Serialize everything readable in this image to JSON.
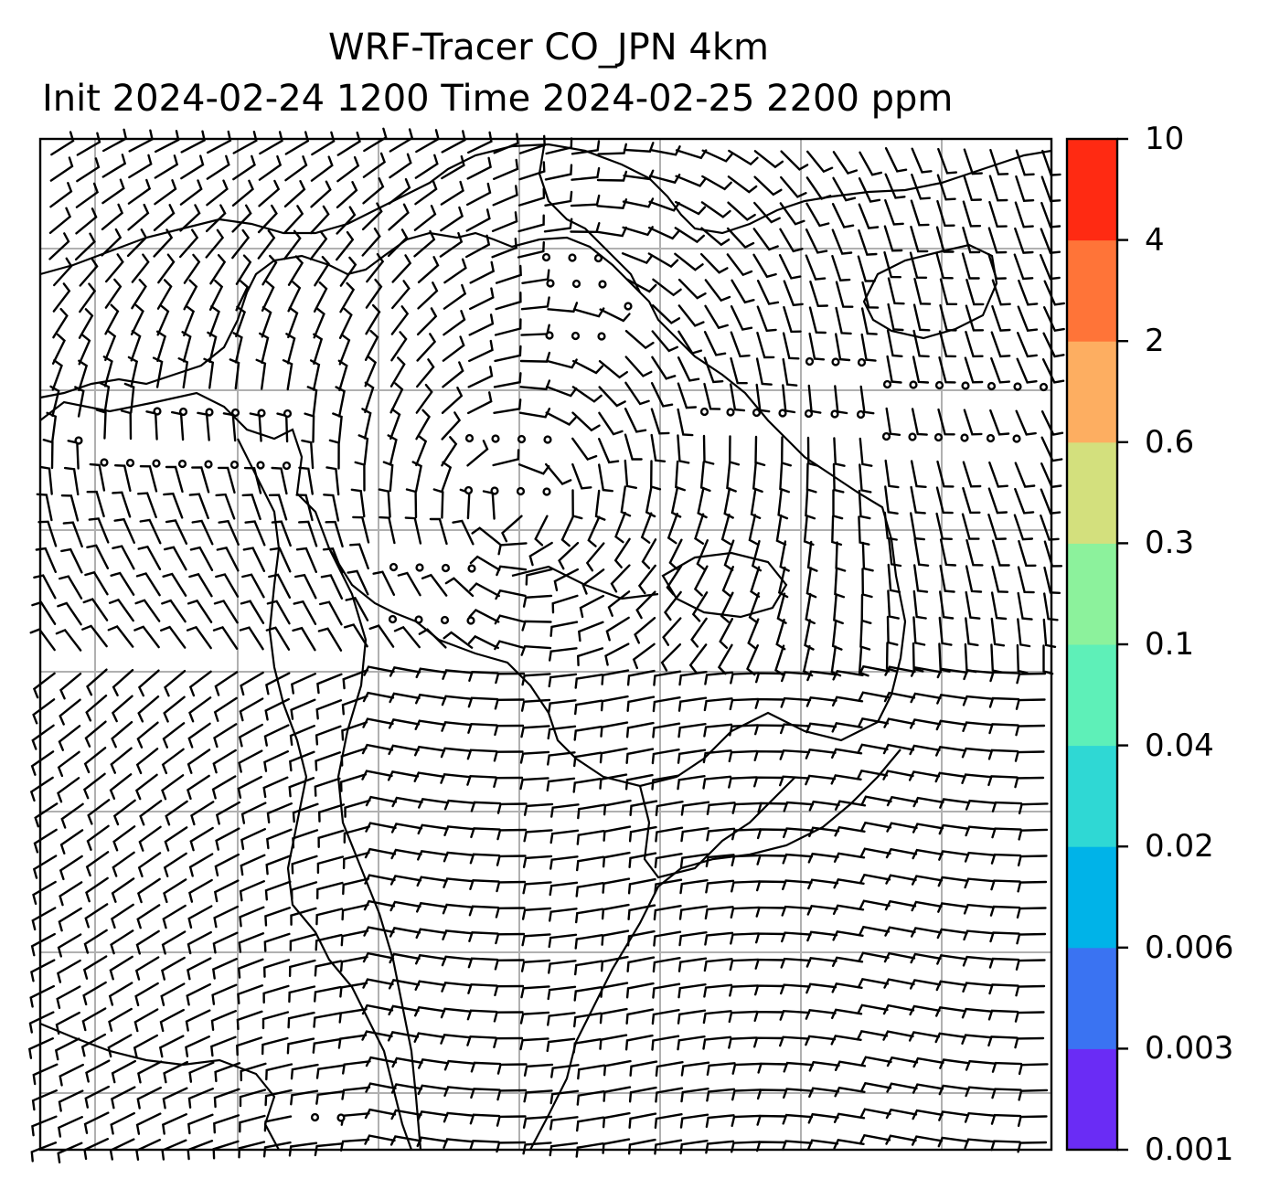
{
  "title": {
    "line1": "WRF-Tracer CO_JPN 4km",
    "line2": "Init 2024-02-24 1200 Time 2024-02-25 2200 ppm"
  },
  "colorbar": {
    "tick_labels": [
      "0.001",
      "0.003",
      "0.006",
      "0.02",
      "0.04",
      "0.1",
      "0.3",
      "0.6",
      "2",
      "4",
      "10"
    ],
    "colors": [
      "#6a2cf5",
      "#3a73f2",
      "#00b3e8",
      "#2fd8d4",
      "#5ef0b8",
      "#8cf29c",
      "#d3e07d",
      "#fdae61",
      "#ff7438",
      "#ff2a12"
    ]
  },
  "map": {
    "gridlines": true,
    "layers": [
      "coastlines",
      "wind-barbs",
      "calm-circles"
    ],
    "gridline_color": "#b0b0b0"
  }
}
